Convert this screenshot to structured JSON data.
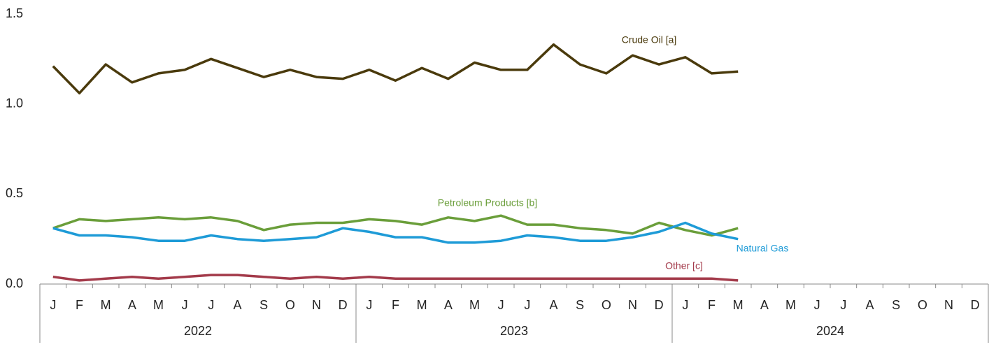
{
  "chart_data": {
    "type": "line",
    "categories": [
      "J",
      "F",
      "M",
      "A",
      "M",
      "J",
      "J",
      "A",
      "S",
      "O",
      "N",
      "D",
      "J",
      "F",
      "M",
      "A",
      "M",
      "J",
      "J",
      "A",
      "S",
      "O",
      "N",
      "D",
      "J",
      "F",
      "M",
      "A",
      "M",
      "J",
      "J",
      "A",
      "S",
      "O",
      "N",
      "D"
    ],
    "year_groups": [
      "2022",
      "2023",
      "2024"
    ],
    "ylim": [
      0,
      1.5
    ],
    "yticks": [
      {
        "value": 0,
        "label": "0.0"
      },
      0.5,
      {
        "value": 1,
        "label": "1.0"
      },
      1.5
    ],
    "grid": false,
    "series": [
      {
        "name": "Crude Oil [a]",
        "color": "#4a3a0c",
        "values": [
          1.21,
          1.06,
          1.22,
          1.12,
          1.17,
          1.19,
          1.25,
          1.2,
          1.15,
          1.19,
          1.15,
          1.14,
          1.19,
          1.13,
          1.2,
          1.14,
          1.23,
          1.19,
          1.19,
          1.33,
          1.22,
          1.17,
          1.27,
          1.22,
          1.26,
          1.17,
          1.18,
          null,
          null,
          null,
          null,
          null,
          null,
          null,
          null,
          null
        ]
      },
      {
        "name": "Petroleum Products [b]",
        "color": "#6a9e3a",
        "values": [
          0.31,
          0.36,
          0.35,
          0.36,
          0.37,
          0.36,
          0.37,
          0.35,
          0.3,
          0.33,
          0.34,
          0.34,
          0.36,
          0.35,
          0.33,
          0.37,
          0.35,
          0.38,
          0.33,
          0.33,
          0.31,
          0.3,
          0.28,
          0.34,
          0.3,
          0.27,
          0.31,
          null,
          null,
          null,
          null,
          null,
          null,
          null,
          null,
          null
        ]
      },
      {
        "name": "Natural Gas",
        "color": "#1e9bd7",
        "values": [
          0.31,
          0.27,
          0.27,
          0.26,
          0.24,
          0.24,
          0.27,
          0.25,
          0.24,
          0.25,
          0.26,
          0.31,
          0.29,
          0.26,
          0.26,
          0.23,
          0.23,
          0.24,
          0.27,
          0.26,
          0.24,
          0.24,
          0.26,
          0.29,
          0.34,
          0.28,
          0.25,
          null,
          null,
          null,
          null,
          null,
          null,
          null,
          null,
          null
        ]
      },
      {
        "name": "Other [c]",
        "color": "#a33a4a",
        "values": [
          0.04,
          0.02,
          0.03,
          0.04,
          0.03,
          0.04,
          0.05,
          0.05,
          0.04,
          0.03,
          0.04,
          0.03,
          0.04,
          0.03,
          0.03,
          0.03,
          0.03,
          0.03,
          0.03,
          0.03,
          0.03,
          0.03,
          0.03,
          0.03,
          0.03,
          0.03,
          0.02,
          null,
          null,
          null,
          null,
          null,
          null,
          null,
          null,
          null
        ]
      }
    ]
  }
}
